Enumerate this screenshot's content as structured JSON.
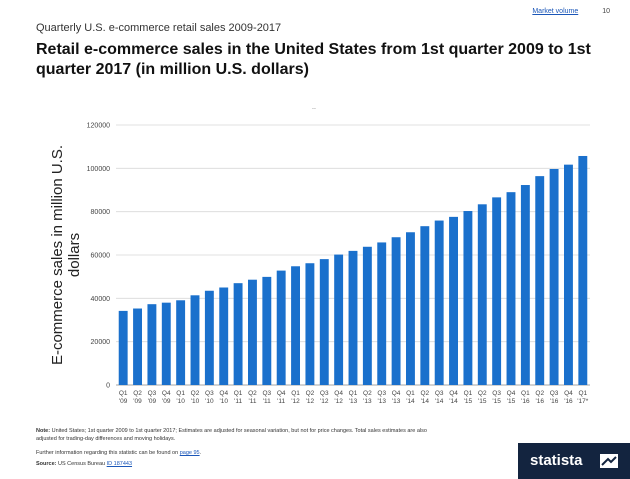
{
  "nav": {
    "link": "Market volume",
    "page": "10"
  },
  "header": {
    "subtitle": "Quarterly U.S. e-commerce retail sales 2009-2017",
    "title": "Retail e-commerce sales in the United States from 1st quarter 2009 to 1st quarter 2017 (in million U.S. dollars)",
    "dots": ".."
  },
  "chart_data": {
    "type": "bar",
    "title": "",
    "xlabel": "",
    "ylabel": "E-commerce sales in million U.S. dollars",
    "ylim": [
      0,
      120000
    ],
    "yticks": [
      0,
      20000,
      40000,
      60000,
      80000,
      100000,
      120000
    ],
    "grid": true,
    "bar_color": "#1a70cc",
    "categories": [
      [
        "Q1",
        "'09"
      ],
      [
        "Q2",
        "'09"
      ],
      [
        "Q3",
        "'09"
      ],
      [
        "Q4",
        "'09"
      ],
      [
        "Q1",
        "'10"
      ],
      [
        "Q2",
        "'10"
      ],
      [
        "Q3",
        "'10"
      ],
      [
        "Q4",
        "'10"
      ],
      [
        "Q1",
        "'11"
      ],
      [
        "Q2",
        "'11"
      ],
      [
        "Q3",
        "'11"
      ],
      [
        "Q4",
        "'11"
      ],
      [
        "Q1",
        "'12"
      ],
      [
        "Q2",
        "'12"
      ],
      [
        "Q3",
        "'12"
      ],
      [
        "Q4",
        "'12"
      ],
      [
        "Q1",
        "'13"
      ],
      [
        "Q2",
        "'13"
      ],
      [
        "Q3",
        "'13"
      ],
      [
        "Q4",
        "'13"
      ],
      [
        "Q1",
        "'14"
      ],
      [
        "Q2",
        "'14"
      ],
      [
        "Q3",
        "'14"
      ],
      [
        "Q4",
        "'14"
      ],
      [
        "Q1",
        "'15"
      ],
      [
        "Q2",
        "'15"
      ],
      [
        "Q3",
        "'15"
      ],
      [
        "Q4",
        "'15"
      ],
      [
        "Q1",
        "'16"
      ],
      [
        "Q2",
        "'16"
      ],
      [
        "Q3",
        "'16"
      ],
      [
        "Q4",
        "'16"
      ],
      [
        "Q1",
        "'17*"
      ]
    ],
    "values": [
      34200,
      35300,
      37300,
      38000,
      39100,
      41400,
      43500,
      45000,
      47000,
      48600,
      49900,
      52800,
      54800,
      56200,
      58100,
      60200,
      61900,
      63800,
      65800,
      68200,
      70500,
      73300,
      75900,
      77600,
      80300,
      83400,
      86600,
      89000,
      92300,
      96400,
      99700,
      101700,
      105700
    ]
  },
  "footer": {
    "note_label": "Note:",
    "note": "United States; 1st quarter 2009 to 1st quarter 2017; Estimates are adjusted for seasonal variation, but not for price changes. Total sales estimates are also adjusted for trading-day differences and moving holidays.",
    "further": "Further information regarding this statistic can be found on",
    "further_link": "page 95",
    "further_end": ".",
    "source_label": "Source:",
    "source": "US Census Bureau",
    "source_id": "ID 187443"
  },
  "brand": {
    "name": "statista",
    "logo_icon": "statista-mark-icon"
  }
}
